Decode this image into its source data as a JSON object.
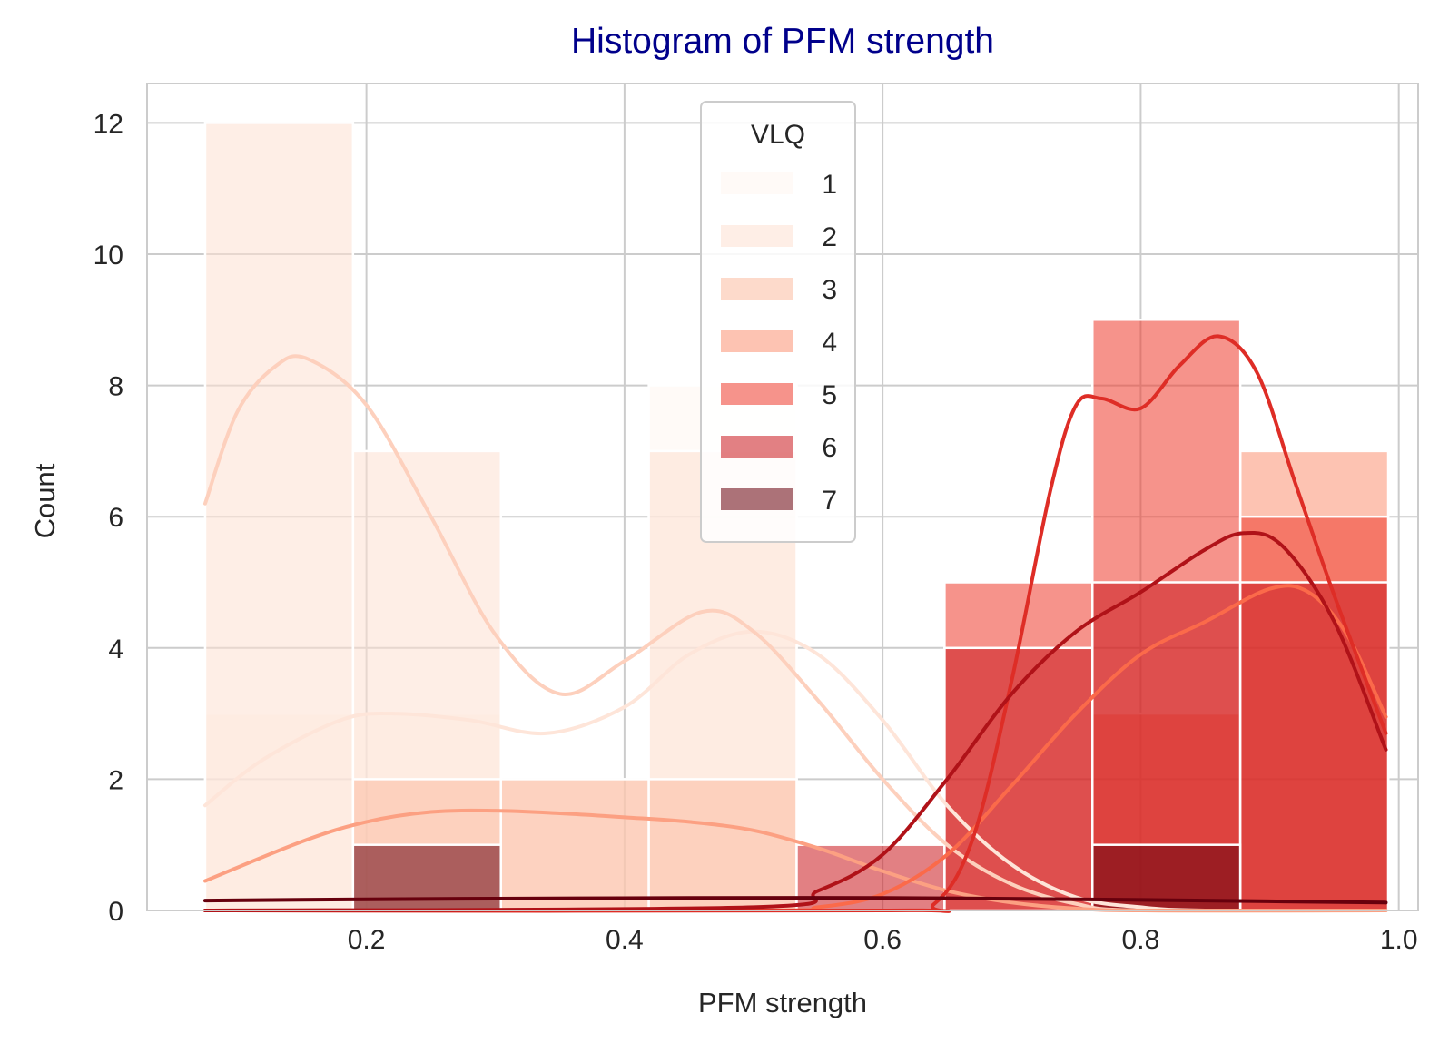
{
  "chart_data": {
    "type": "histogram",
    "title": "Histogram of PFM strength",
    "xlabel": "PFM strength",
    "ylabel": "Count",
    "xlim": [
      0.03,
      1.015
    ],
    "ylim": [
      0,
      12.6
    ],
    "xticks": [
      0.2,
      0.4,
      0.6,
      0.8,
      1.0
    ],
    "xtick_labels": [
      "0.2",
      "0.4",
      "0.6",
      "0.8",
      "1.0"
    ],
    "yticks": [
      0,
      2,
      4,
      6,
      8,
      10,
      12
    ],
    "ytick_labels": [
      "0",
      "2",
      "4",
      "6",
      "8",
      "10",
      "12"
    ],
    "grid": true,
    "legend_title": "VLQ",
    "legend_position": "upper-center",
    "bin_edges": [
      0.075,
      0.1896,
      0.3042,
      0.4188,
      0.5334,
      0.648,
      0.7626,
      0.8772,
      0.9918
    ],
    "series": [
      {
        "name": "1",
        "color": "#fff5f0",
        "counts": [
          3,
          3,
          0,
          8,
          0,
          0,
          0,
          0
        ],
        "kde": [
          [
            0.075,
            1.6
          ],
          [
            0.12,
            2.3
          ],
          [
            0.18,
            2.9
          ],
          [
            0.22,
            3.0
          ],
          [
            0.28,
            2.9
          ],
          [
            0.34,
            2.7
          ],
          [
            0.4,
            3.1
          ],
          [
            0.45,
            3.9
          ],
          [
            0.5,
            4.25
          ],
          [
            0.55,
            3.9
          ],
          [
            0.6,
            2.9
          ],
          [
            0.65,
            1.6
          ],
          [
            0.7,
            0.7
          ],
          [
            0.75,
            0.2
          ],
          [
            0.8,
            0.05
          ],
          [
            0.85,
            0
          ],
          [
            0.99,
            0
          ]
        ]
      },
      {
        "name": "2",
        "color": "#fee0d2",
        "counts": [
          12,
          7,
          2,
          7,
          0,
          0,
          0,
          0
        ],
        "kde": [
          [
            0.075,
            6.2
          ],
          [
            0.1,
            7.6
          ],
          [
            0.13,
            8.3
          ],
          [
            0.155,
            8.4
          ],
          [
            0.2,
            7.7
          ],
          [
            0.25,
            6.0
          ],
          [
            0.3,
            4.2
          ],
          [
            0.35,
            3.3
          ],
          [
            0.4,
            3.8
          ],
          [
            0.46,
            4.55
          ],
          [
            0.5,
            4.25
          ],
          [
            0.55,
            3.2
          ],
          [
            0.6,
            2.0
          ],
          [
            0.65,
            1.0
          ],
          [
            0.7,
            0.4
          ],
          [
            0.75,
            0.1
          ],
          [
            0.8,
            0
          ],
          [
            0.99,
            0
          ]
        ]
      },
      {
        "name": "3",
        "color": "#fcbba1",
        "counts": [
          0,
          2,
          2,
          2,
          0,
          0,
          0,
          0
        ],
        "kde": [
          [
            0.075,
            0.45
          ],
          [
            0.15,
            1.05
          ],
          [
            0.2,
            1.35
          ],
          [
            0.25,
            1.5
          ],
          [
            0.3,
            1.52
          ],
          [
            0.35,
            1.48
          ],
          [
            0.4,
            1.42
          ],
          [
            0.45,
            1.35
          ],
          [
            0.5,
            1.22
          ],
          [
            0.55,
            0.95
          ],
          [
            0.6,
            0.6
          ],
          [
            0.65,
            0.3
          ],
          [
            0.7,
            0.12
          ],
          [
            0.75,
            0.03
          ],
          [
            0.8,
            0
          ],
          [
            0.99,
            0
          ]
        ]
      },
      {
        "name": "4",
        "color": "#fc9272",
        "counts": [
          0,
          0,
          0,
          0,
          0,
          0,
          3,
          7
        ],
        "kde": [
          [
            0.075,
            0
          ],
          [
            0.5,
            0
          ],
          [
            0.55,
            0.05
          ],
          [
            0.6,
            0.25
          ],
          [
            0.65,
            0.85
          ],
          [
            0.7,
            1.9
          ],
          [
            0.75,
            3.0
          ],
          [
            0.8,
            3.9
          ],
          [
            0.85,
            4.4
          ],
          [
            0.9,
            4.9
          ],
          [
            0.93,
            4.85
          ],
          [
            0.96,
            4.2
          ],
          [
            0.99,
            2.95
          ]
        ]
      },
      {
        "name": "5",
        "color": "#ef3b2c",
        "counts": [
          0,
          0,
          0,
          0,
          0,
          5,
          9,
          6
        ],
        "kde": [
          [
            0.075,
            0
          ],
          [
            0.6,
            0
          ],
          [
            0.64,
            0.1
          ],
          [
            0.67,
            1.1
          ],
          [
            0.7,
            3.5
          ],
          [
            0.73,
            6.4
          ],
          [
            0.75,
            7.7
          ],
          [
            0.77,
            7.8
          ],
          [
            0.8,
            7.65
          ],
          [
            0.83,
            8.3
          ],
          [
            0.86,
            8.75
          ],
          [
            0.89,
            8.2
          ],
          [
            0.92,
            6.5
          ],
          [
            0.95,
            4.8
          ],
          [
            0.99,
            2.7
          ]
        ]
      },
      {
        "name": "6",
        "color": "#cb181d",
        "counts": [
          0,
          0,
          0,
          0,
          1,
          4,
          5,
          5
        ],
        "kde": [
          [
            0.075,
            0
          ],
          [
            0.5,
            0.05
          ],
          [
            0.55,
            0.3
          ],
          [
            0.6,
            0.85
          ],
          [
            0.65,
            2.0
          ],
          [
            0.7,
            3.3
          ],
          [
            0.75,
            4.25
          ],
          [
            0.8,
            4.85
          ],
          [
            0.85,
            5.5
          ],
          [
            0.88,
            5.75
          ],
          [
            0.91,
            5.55
          ],
          [
            0.95,
            4.4
          ],
          [
            0.99,
            2.45
          ]
        ]
      },
      {
        "name": "7",
        "color": "#67000d",
        "counts": [
          0,
          1,
          0,
          0,
          0,
          0,
          1,
          0
        ],
        "kde": [
          [
            0.075,
            0.15
          ],
          [
            0.2,
            0.17
          ],
          [
            0.3,
            0.18
          ],
          [
            0.45,
            0.19
          ],
          [
            0.6,
            0.19
          ],
          [
            0.75,
            0.17
          ],
          [
            0.85,
            0.15
          ],
          [
            0.99,
            0.12
          ]
        ]
      }
    ]
  }
}
